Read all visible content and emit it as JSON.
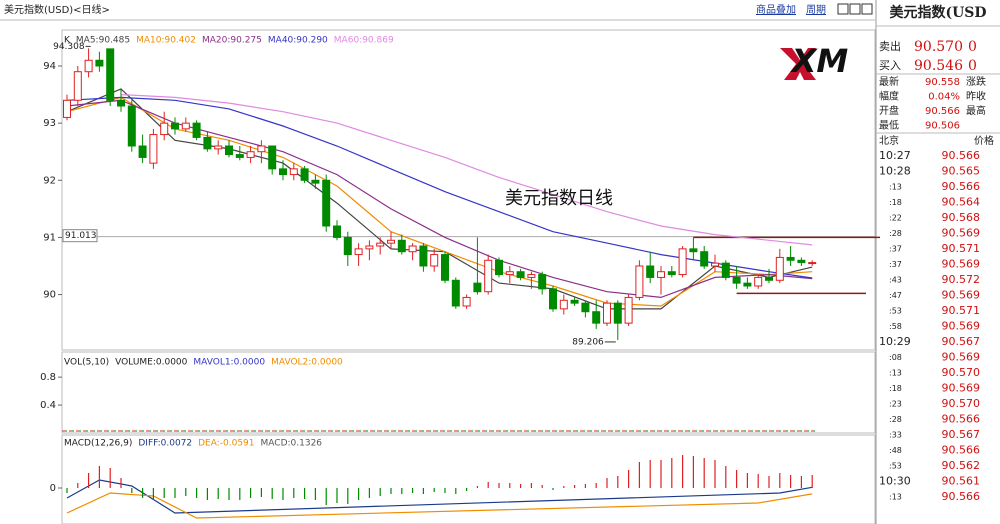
{
  "header": {
    "title": "美元指数(USD)<日线>",
    "buttons": [
      "商品叠加",
      "周期"
    ]
  },
  "logo": "XM",
  "chart_data": [
    {
      "type": "candlestick",
      "legend_title": "K",
      "annotation": "美元指数日线",
      "categories": [
        null,
        null,
        null,
        null,
        null,
        null,
        null,
        null,
        null,
        null,
        null,
        null,
        null,
        null,
        null,
        null,
        null,
        null,
        null,
        null,
        null,
        null,
        null,
        null,
        null,
        null,
        null,
        null,
        null,
        null,
        null,
        null,
        null,
        null,
        null,
        null,
        null,
        null,
        null,
        null,
        null,
        null,
        null,
        null,
        null,
        null,
        null,
        null,
        null,
        null,
        null,
        null,
        null,
        null,
        null,
        null,
        null,
        null,
        null,
        null,
        null,
        null,
        null,
        null,
        null,
        null,
        null,
        null,
        null,
        null
      ],
      "open": [
        93.1,
        93.4,
        93.9,
        94.1,
        94.3,
        93.4,
        93.3,
        92.6,
        92.3,
        92.8,
        93.0,
        92.9,
        93.0,
        92.75,
        92.55,
        92.6,
        92.45,
        92.4,
        92.5,
        92.6,
        92.2,
        92.1,
        92.2,
        92.0,
        92.0,
        91.2,
        91.0,
        90.7,
        90.8,
        90.85,
        90.9,
        90.95,
        90.75,
        90.85,
        90.5,
        90.7,
        90.25,
        89.8,
        90.2,
        90.05,
        90.6,
        90.35,
        90.4,
        90.3,
        90.35,
        90.1,
        89.75,
        89.9,
        89.85,
        89.7,
        89.5,
        89.85,
        89.5,
        89.95,
        90.5,
        90.3,
        90.4,
        90.35,
        90.8,
        90.75,
        90.5,
        90.55,
        90.3,
        90.2,
        90.15,
        90.3,
        90.25,
        90.65,
        90.6,
        90.55
      ],
      "high": [
        93.5,
        94.0,
        94.308,
        94.25,
        94.3,
        93.6,
        93.4,
        92.8,
        92.9,
        93.2,
        93.1,
        93.1,
        93.05,
        92.85,
        92.7,
        92.7,
        92.6,
        92.6,
        92.7,
        92.6,
        92.35,
        92.3,
        92.25,
        92.1,
        92.1,
        91.3,
        91.1,
        90.9,
        90.95,
        91.0,
        91.1,
        91.05,
        90.9,
        90.9,
        90.8,
        90.75,
        90.3,
        90.0,
        91.0,
        90.7,
        90.65,
        90.5,
        90.45,
        90.4,
        90.4,
        90.15,
        90.0,
        89.95,
        89.9,
        89.9,
        89.9,
        89.9,
        90.0,
        90.6,
        90.75,
        90.5,
        90.5,
        90.85,
        91.0,
        90.85,
        90.7,
        90.6,
        90.5,
        90.3,
        90.35,
        90.45,
        90.8,
        90.85,
        90.65,
        90.6
      ],
      "low": [
        93.05,
        93.3,
        93.8,
        93.9,
        93.3,
        93.2,
        92.5,
        92.3,
        92.2,
        92.7,
        92.8,
        92.85,
        92.7,
        92.5,
        92.45,
        92.4,
        92.35,
        92.3,
        92.3,
        92.1,
        92.0,
        92.0,
        91.95,
        91.85,
        91.1,
        90.95,
        90.5,
        90.5,
        90.6,
        90.7,
        90.8,
        90.7,
        90.6,
        90.4,
        90.4,
        90.2,
        89.75,
        89.75,
        90.0,
        90.0,
        90.3,
        90.2,
        90.25,
        90.1,
        90.0,
        89.7,
        89.65,
        89.8,
        89.6,
        89.4,
        89.45,
        89.206,
        89.45,
        89.9,
        90.2,
        90.0,
        90.3,
        90.3,
        90.6,
        90.45,
        90.4,
        90.25,
        90.1,
        90.1,
        90.1,
        90.2,
        90.2,
        90.5,
        90.5,
        90.5
      ],
      "close": [
        93.4,
        93.9,
        94.1,
        94.0,
        93.4,
        93.3,
        92.6,
        92.4,
        92.8,
        93.0,
        92.9,
        93.0,
        92.75,
        92.55,
        92.6,
        92.45,
        92.4,
        92.5,
        92.6,
        92.2,
        92.1,
        92.2,
        92.0,
        91.95,
        91.2,
        91.0,
        90.7,
        90.8,
        90.85,
        90.9,
        90.95,
        90.75,
        90.85,
        90.5,
        90.7,
        90.25,
        89.8,
        89.95,
        90.05,
        90.6,
        90.35,
        90.4,
        90.3,
        90.35,
        90.1,
        89.75,
        89.9,
        89.85,
        89.7,
        89.5,
        89.85,
        89.5,
        89.95,
        90.5,
        90.3,
        90.4,
        90.35,
        90.8,
        90.75,
        90.5,
        90.55,
        90.3,
        90.2,
        90.15,
        90.3,
        90.25,
        90.65,
        90.6,
        90.56,
        90.56
      ],
      "up_color": "#e02020",
      "down_color": "#008a00",
      "high_label_index": 2,
      "low_label_index": 51,
      "ylim": [
        89.03,
        94.63
      ],
      "yticks": [
        90,
        91,
        92,
        93,
        94
      ],
      "marker_line": {
        "value": 91.013,
        "label": "91.013"
      },
      "levels": [
        {
          "value": 91.0,
          "from": 58
        },
        {
          "value": 90.02,
          "from": 62
        }
      ],
      "level_color": "#8b1a1a",
      "series": [
        {
          "name": "MA5:90.485",
          "color": "#444444",
          "x": [
            0,
            5,
            10,
            15,
            20,
            25,
            30,
            35,
            40,
            45,
            50,
            55,
            60,
            65,
            69
          ],
          "values": [
            93.2,
            93.6,
            92.7,
            92.55,
            92.3,
            91.6,
            90.8,
            90.75,
            90.2,
            90.1,
            89.75,
            89.75,
            90.5,
            90.3,
            90.48
          ]
        },
        {
          "name": "MA10:90.402",
          "color": "#f08c00",
          "x": [
            0,
            5,
            10,
            15,
            20,
            25,
            30,
            35,
            40,
            45,
            50,
            55,
            60,
            65,
            69
          ],
          "values": [
            93.2,
            93.45,
            92.9,
            92.7,
            92.4,
            91.9,
            91.1,
            90.75,
            90.4,
            90.15,
            89.85,
            89.8,
            90.4,
            90.35,
            90.4
          ]
        },
        {
          "name": "MA20:90.275",
          "color": "#8b2f8b",
          "x": [
            0,
            5,
            10,
            15,
            20,
            25,
            30,
            35,
            40,
            45,
            50,
            55,
            60,
            65,
            69
          ],
          "values": [
            93.3,
            93.4,
            93.0,
            92.75,
            92.5,
            92.1,
            91.5,
            91.0,
            90.6,
            90.3,
            90.05,
            89.95,
            90.3,
            90.35,
            90.28
          ]
        },
        {
          "name": "MA40:90.290",
          "color": "#3535c8",
          "x": [
            0,
            5,
            10,
            15,
            20,
            25,
            30,
            35,
            40,
            45,
            50,
            55,
            60,
            65,
            69
          ],
          "values": [
            93.4,
            93.45,
            93.4,
            93.25,
            92.95,
            92.6,
            92.2,
            91.8,
            91.45,
            91.1,
            90.9,
            90.7,
            90.55,
            90.4,
            90.29
          ]
        },
        {
          "name": "MA60:90.869",
          "color": "#e08ae0",
          "x": [
            5,
            10,
            15,
            20,
            25,
            30,
            35,
            40,
            45,
            50,
            55,
            60,
            65,
            69
          ],
          "values": [
            93.5,
            93.45,
            93.35,
            93.2,
            93.0,
            92.7,
            92.4,
            92.05,
            91.75,
            91.45,
            91.2,
            91.05,
            90.95,
            90.87
          ]
        }
      ]
    },
    {
      "type": "volume",
      "legend_title": "VOL(5,10)",
      "ylim": [
        0,
        1.16
      ],
      "yticks": [
        0.4,
        0.8
      ],
      "series": [
        {
          "name": "VOLUME:0.0000",
          "color": "#222222"
        },
        {
          "name": "MAVOL1:0.0000",
          "color": "#3535c8"
        },
        {
          "name": "MAVOL2:0.0000",
          "color": "#f08c00"
        }
      ]
    },
    {
      "type": "macd",
      "legend_title": "MACD(12,26,9)",
      "ylim": [
        -0.36,
        0.53
      ],
      "yticks": [
        0
      ],
      "up_color": "#e02020",
      "down_color": "#008a00",
      "series": [
        {
          "name": "DIFF:0.0072",
          "color": "#1a3a8a",
          "x": [
            0,
            3,
            6,
            10,
            66,
            69
          ],
          "values": [
            -0.1,
            0.08,
            0.02,
            -0.25,
            -0.05,
            0.007
          ]
        },
        {
          "name": "DEA:-0.0591",
          "color": "#f08c00",
          "x": [
            0,
            4,
            8,
            12,
            64,
            69
          ],
          "values": [
            -0.25,
            -0.05,
            -0.08,
            -0.3,
            -0.15,
            -0.059
          ]
        },
        {
          "name": "MACD:0.1326",
          "color": "#555555",
          "values": [
            -0.05,
            0.05,
            0.15,
            0.22,
            0.2,
            0.1,
            -0.05,
            -0.1,
            -0.12,
            -0.1,
            -0.1,
            -0.08,
            -0.1,
            -0.12,
            -0.11,
            -0.12,
            -0.12,
            -0.1,
            -0.09,
            -0.11,
            -0.12,
            -0.1,
            -0.11,
            -0.12,
            -0.17,
            -0.15,
            -0.16,
            -0.12,
            -0.1,
            -0.08,
            -0.06,
            -0.06,
            -0.05,
            -0.06,
            -0.04,
            -0.05,
            -0.06,
            -0.03,
            0.02,
            0.06,
            0.05,
            0.05,
            0.04,
            0.05,
            0.03,
            -0.02,
            0.02,
            0.03,
            0.04,
            0.05,
            0.1,
            0.12,
            0.18,
            0.26,
            0.28,
            0.28,
            0.3,
            0.33,
            0.32,
            0.3,
            0.28,
            0.22,
            0.18,
            0.15,
            0.14,
            0.12,
            0.15,
            0.13,
            0.12,
            0.13
          ]
        }
      ]
    }
  ],
  "quote": {
    "title": "美元指数(USD",
    "big_rows": [
      [
        "卖出",
        "90.570",
        "0"
      ],
      [
        "买入",
        "90.546",
        "0"
      ]
    ],
    "rows": [
      [
        "最新",
        "90.558",
        "涨跌"
      ],
      [
        "幅度",
        "0.04%",
        "昨收"
      ],
      [
        "开盘",
        "90.566",
        "最高"
      ],
      [
        "最低",
        "90.506"
      ]
    ],
    "ticks_header": [
      "北京",
      "价格"
    ],
    "ticks": [
      [
        "10:27",
        "90.566"
      ],
      [
        "10:28",
        "90.565"
      ],
      [
        ":13",
        "90.566"
      ],
      [
        ":18",
        "90.564"
      ],
      [
        ":22",
        "90.568"
      ],
      [
        ":28",
        "90.569"
      ],
      [
        ":37",
        "90.571"
      ],
      [
        ":37",
        "90.569"
      ],
      [
        ":43",
        "90.572"
      ],
      [
        ":47",
        "90.569"
      ],
      [
        ":53",
        "90.571"
      ],
      [
        ":58",
        "90.569"
      ],
      [
        "10:29",
        "90.567"
      ],
      [
        ":08",
        "90.569"
      ],
      [
        ":13",
        "90.570"
      ],
      [
        ":18",
        "90.569"
      ],
      [
        ":23",
        "90.570"
      ],
      [
        ":28",
        "90.566"
      ],
      [
        ":33",
        "90.567"
      ],
      [
        ":48",
        "90.566"
      ],
      [
        ":53",
        "90.562"
      ],
      [
        "10:30",
        "90.561"
      ],
      [
        ":13",
        "90.566"
      ]
    ]
  }
}
